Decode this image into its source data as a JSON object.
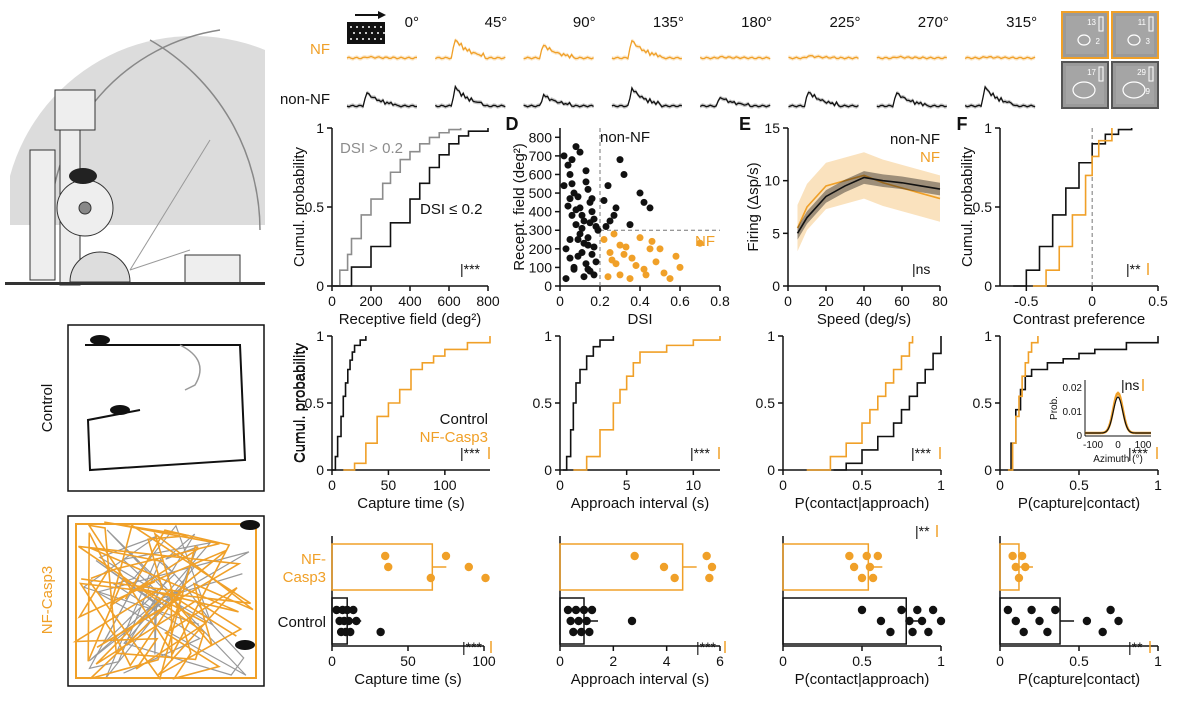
{
  "colors": {
    "nf": "#f0a028",
    "nonnf": "#111111",
    "gray": "#8c8c8c"
  },
  "top_row": {
    "angles": [
      "0°",
      "45°",
      "90°",
      "135°",
      "180°",
      "225°",
      "270°",
      "315°"
    ],
    "nf_label": "NF",
    "nonnf_label": "non-NF",
    "nf_peaks": [
      0.05,
      0.85,
      0.6,
      0.8,
      0.05,
      0.1,
      0.05,
      0.05
    ],
    "nonnf_peaks": [
      0.6,
      0.85,
      0.5,
      0.8,
      0.4,
      0.65,
      0.6,
      0.85
    ],
    "rf_numbers": [
      "13",
      "11",
      "17",
      "29"
    ],
    "rf_sub_numbers": [
      "2",
      "3",
      "",
      "9"
    ]
  },
  "left_panel": {
    "control_label": "Control",
    "nfcasp3_label": "NF-Casp3"
  },
  "chart_data": [
    {
      "id": "rf_cdf",
      "type": "line",
      "title": "",
      "xlabel": "Receptive field (deg²)",
      "ylabel": "Cumul. probability",
      "xlim": [
        0,
        800
      ],
      "ylim": [
        0,
        1
      ],
      "xticks": [
        "0",
        "200",
        "400",
        "600",
        "800"
      ],
      "yticks": [
        "0",
        "0.5",
        "1"
      ],
      "series": [
        {
          "name": "DSI > 0.2",
          "color": "gray",
          "x": [
            0,
            40,
            80,
            100,
            150,
            200,
            260,
            300,
            350,
            400,
            450,
            500,
            550,
            600,
            660
          ],
          "y": [
            0,
            0.1,
            0.2,
            0.3,
            0.45,
            0.55,
            0.65,
            0.72,
            0.8,
            0.85,
            0.9,
            0.94,
            0.97,
            0.99,
            1.0
          ]
        },
        {
          "name": "DSI ≤ 0.2",
          "color": "nonnf",
          "x": [
            0,
            100,
            200,
            300,
            400,
            450,
            500,
            550,
            600,
            650,
            700,
            800
          ],
          "y": [
            0,
            0.12,
            0.25,
            0.4,
            0.55,
            0.65,
            0.75,
            0.83,
            0.9,
            0.95,
            0.98,
            1.0
          ]
        }
      ],
      "annotation": "***"
    },
    {
      "id": "rf_dsi_scatter",
      "type": "scatter",
      "panel_letter": "D",
      "xlabel": "DSI",
      "ylabel": "Recept. field (deg²)",
      "xlim": [
        0,
        0.8
      ],
      "ylim": [
        0,
        850
      ],
      "xticks": [
        "0",
        "0.2",
        "0.4",
        "0.6",
        "0.8"
      ],
      "yticks": [
        "0",
        "100",
        "200",
        "300",
        "400",
        "500",
        "600",
        "700",
        "800"
      ],
      "thresholds": {
        "dsi": 0.2,
        "rf": 300
      },
      "labels": {
        "nonnf": "non-NF",
        "nf": "NF"
      },
      "nonnf_points": {
        "x": [
          0.02,
          0.04,
          0.05,
          0.06,
          0.07,
          0.08,
          0.09,
          0.1,
          0.11,
          0.12,
          0.13,
          0.14,
          0.15,
          0.16,
          0.17,
          0.18,
          0.19,
          0.03,
          0.05,
          0.07,
          0.09,
          0.11,
          0.13,
          0.15,
          0.17,
          0.04,
          0.06,
          0.08,
          0.1,
          0.12,
          0.14,
          0.16,
          0.18,
          0.02,
          0.05,
          0.08,
          0.11,
          0.14,
          0.17,
          0.06,
          0.1,
          0.13,
          0.16,
          0.03,
          0.07,
          0.12,
          0.15,
          0.05,
          0.09,
          0.14,
          0.3,
          0.32,
          0.4,
          0.42,
          0.25,
          0.28,
          0.22,
          0.24,
          0.35,
          0.45,
          0.27,
          0.23
        ],
        "y": [
          700,
          650,
          600,
          550,
          500,
          750,
          480,
          420,
          380,
          350,
          620,
          520,
          450,
          400,
          360,
          320,
          300,
          200,
          150,
          100,
          250,
          180,
          120,
          80,
          60,
          430,
          380,
          330,
          280,
          230,
          220,
          170,
          130,
          540,
          470,
          410,
          310,
          260,
          210,
          680,
          720,
          560,
          470,
          40,
          90,
          50,
          340,
          250,
          160,
          90,
          680,
          600,
          500,
          450,
          350,
          420,
          460,
          540,
          330,
          420,
          380,
          320
        ]
      },
      "nf_points": {
        "x": [
          0.22,
          0.25,
          0.28,
          0.3,
          0.33,
          0.36,
          0.4,
          0.42,
          0.45,
          0.48,
          0.52,
          0.55,
          0.6,
          0.7,
          0.24,
          0.27,
          0.32,
          0.38,
          0.46,
          0.58,
          0.35,
          0.5,
          0.3,
          0.43,
          0.26
        ],
        "y": [
          250,
          180,
          120,
          60,
          210,
          150,
          260,
          90,
          200,
          130,
          70,
          40,
          100,
          230,
          50,
          280,
          170,
          110,
          240,
          160,
          40,
          200,
          220,
          60,
          140
        ]
      }
    },
    {
      "id": "speed_tuning",
      "type": "line",
      "panel_letter": "E",
      "xlabel": "Speed (deg/s)",
      "ylabel": "Firing (Δsp/s)",
      "xlim": [
        0,
        80
      ],
      "ylim": [
        0,
        15
      ],
      "xticks": [
        "0",
        "20",
        "40",
        "60",
        "80"
      ],
      "yticks": [
        "0",
        "5",
        "10",
        "15"
      ],
      "legend": [
        "non-NF",
        "NF"
      ],
      "series": [
        {
          "name": "non-NF",
          "color": "nonnf",
          "x": [
            5,
            10,
            20,
            30,
            40,
            50,
            60,
            70,
            80
          ],
          "y": [
            5,
            6.5,
            8.5,
            9.5,
            10.3,
            10,
            9.8,
            9.5,
            9.2
          ]
        },
        {
          "name": "NF",
          "color": "nf",
          "x": [
            5,
            10,
            20,
            30,
            40,
            50,
            60,
            70,
            80
          ],
          "y": [
            5.5,
            7.5,
            9.5,
            10,
            10.5,
            9.8,
            9.3,
            8.8,
            8.3
          ]
        }
      ],
      "annotation": "ns"
    },
    {
      "id": "contrast_cdf",
      "type": "line",
      "panel_letter": "F",
      "xlabel": "Contrast preference",
      "ylabel": "Cumul. probability",
      "xlim": [
        -0.7,
        0.5
      ],
      "ylim": [
        0,
        1
      ],
      "xticks": [
        "-0.5",
        "0",
        "0.5"
      ],
      "yticks": [
        "0",
        "0.5",
        "1"
      ],
      "series": [
        {
          "name": "non-NF",
          "color": "nonnf",
          "x": [
            -0.6,
            -0.5,
            -0.4,
            -0.3,
            -0.2,
            -0.1,
            0,
            0.1,
            0.2,
            0.3
          ],
          "y": [
            0,
            0.1,
            0.25,
            0.45,
            0.62,
            0.78,
            0.9,
            0.96,
            0.99,
            1
          ]
        },
        {
          "name": "NF",
          "color": "nf",
          "x": [
            -0.45,
            -0.35,
            -0.25,
            -0.15,
            -0.05,
            0,
            0.05,
            0.15
          ],
          "y": [
            0,
            0.1,
            0.25,
            0.45,
            0.7,
            0.82,
            0.92,
            1
          ]
        }
      ],
      "annotation": "**"
    },
    {
      "id": "capture_time_cdf",
      "type": "line",
      "xlabel": "Capture time (s)",
      "ylabel": "Cumul. probability",
      "xlim": [
        0,
        140
      ],
      "ylim": [
        0,
        1
      ],
      "xticks": [
        "0",
        "50",
        "100"
      ],
      "yticks": [
        "0",
        "0.5",
        "1"
      ],
      "legend": [
        "Control",
        "NF-Casp3"
      ],
      "series": [
        {
          "name": "Control",
          "color": "nonnf",
          "x": [
            0,
            3,
            5,
            8,
            10,
            12,
            14,
            16,
            18,
            20,
            25,
            30
          ],
          "y": [
            0,
            0.1,
            0.25,
            0.4,
            0.55,
            0.65,
            0.75,
            0.82,
            0.88,
            0.93,
            0.97,
            1
          ]
        },
        {
          "name": "NF-Casp3",
          "color": "nf",
          "x": [
            10,
            20,
            30,
            40,
            50,
            60,
            70,
            80,
            90,
            100,
            120,
            140
          ],
          "y": [
            0,
            0.05,
            0.2,
            0.4,
            0.5,
            0.6,
            0.75,
            0.8,
            0.85,
            0.9,
            0.95,
            1
          ]
        }
      ],
      "annotation": "***"
    },
    {
      "id": "approach_cdf",
      "type": "line",
      "xlabel": "Approach interval (s)",
      "ylabel": "",
      "xlim": [
        0,
        12
      ],
      "ylim": [
        0,
        1
      ],
      "xticks": [
        "0",
        "5",
        "10"
      ],
      "yticks": [
        "0",
        "0.5",
        "1"
      ],
      "series": [
        {
          "name": "Control",
          "color": "nonnf",
          "x": [
            0.2,
            0.5,
            0.8,
            1,
            1.2,
            1.5,
            2,
            2.5,
            3,
            4
          ],
          "y": [
            0,
            0.1,
            0.3,
            0.5,
            0.65,
            0.75,
            0.85,
            0.92,
            0.97,
            1
          ]
        },
        {
          "name": "NF-Casp3",
          "color": "nf",
          "x": [
            1,
            2,
            3,
            4,
            4.5,
            5,
            5.5,
            6,
            8,
            10,
            12
          ],
          "y": [
            0,
            0.1,
            0.3,
            0.5,
            0.6,
            0.7,
            0.8,
            0.88,
            0.93,
            0.97,
            1
          ]
        }
      ],
      "annotation": "***"
    },
    {
      "id": "contact_approach_cdf",
      "type": "line",
      "xlabel": "P(contact|approach)",
      "ylabel": "",
      "xlim": [
        0,
        1
      ],
      "ylim": [
        0,
        1
      ],
      "xticks": [
        "0",
        "0.5",
        "1"
      ],
      "yticks": [
        "0",
        "0.5",
        "1"
      ],
      "series": [
        {
          "name": "Control",
          "color": "nonnf",
          "x": [
            0.32,
            0.4,
            0.5,
            0.6,
            0.7,
            0.75,
            0.8,
            0.85,
            0.9,
            0.95,
            1
          ],
          "y": [
            0,
            0.05,
            0.15,
            0.25,
            0.35,
            0.45,
            0.55,
            0.65,
            0.75,
            0.87,
            1
          ]
        },
        {
          "name": "NF-Casp3",
          "color": "nf",
          "x": [
            0.15,
            0.3,
            0.4,
            0.5,
            0.55,
            0.6,
            0.65,
            0.7,
            0.75,
            0.8,
            0.82
          ],
          "y": [
            0,
            0.1,
            0.2,
            0.35,
            0.45,
            0.55,
            0.65,
            0.75,
            0.85,
            0.95,
            1
          ]
        }
      ],
      "annotation": "***"
    },
    {
      "id": "capture_contact_cdf",
      "type": "line",
      "xlabel": "P(capture|contact)",
      "ylabel": "",
      "xlim": [
        0,
        1
      ],
      "ylim": [
        0,
        1
      ],
      "xticks": [
        "0",
        "0.5",
        "1"
      ],
      "yticks": [
        "0",
        "0.5",
        "1"
      ],
      "series": [
        {
          "name": "Control",
          "color": "nonnf",
          "x": [
            0.05,
            0.07,
            0.1,
            0.13,
            0.16,
            0.2,
            0.3,
            0.4,
            0.5,
            0.6,
            0.8,
            1
          ],
          "y": [
            0,
            0.2,
            0.45,
            0.6,
            0.7,
            0.75,
            0.8,
            0.83,
            0.87,
            0.9,
            0.95,
            1
          ]
        },
        {
          "name": "NF-Casp3",
          "color": "nf",
          "x": [
            0.05,
            0.08,
            0.1,
            0.12,
            0.14,
            0.16,
            0.18,
            0.2,
            0.24
          ],
          "y": [
            0,
            0.2,
            0.4,
            0.55,
            0.7,
            0.8,
            0.88,
            0.95,
            1
          ]
        }
      ],
      "annotation": "***",
      "inset": {
        "xlabel": "Azimuth (°)",
        "ylabel": "Prob.",
        "xticks": [
          "-100",
          "0",
          "100"
        ],
        "yticks": [
          "0",
          "0.01",
          "0.02"
        ],
        "annotation": "ns"
      }
    },
    {
      "id": "capture_time_bar",
      "type": "bar",
      "categories": [
        "NF-Casp3",
        "Control"
      ],
      "xlabel": "Capture time (s)",
      "xlim": [
        0,
        100
      ],
      "xticks": [
        "0",
        "50",
        "100"
      ],
      "values": [
        66,
        10
      ],
      "points": [
        [
          35,
          37,
          65,
          75,
          90,
          101
        ],
        [
          3,
          5,
          6,
          7,
          8,
          9,
          10,
          11,
          12,
          14,
          16,
          32
        ]
      ],
      "annotation": "***"
    },
    {
      "id": "approach_interval_bar",
      "type": "bar",
      "categories": [
        "NF-Casp3",
        "Control"
      ],
      "xlabel": "Approach interval (s)",
      "xlim": [
        0,
        6
      ],
      "xticks": [
        "0",
        "2",
        "4",
        "6"
      ],
      "values": [
        4.6,
        0.9
      ],
      "points": [
        [
          2.8,
          3.9,
          4.3,
          5.5,
          5.7,
          5.6
        ],
        [
          0.3,
          0.4,
          0.5,
          0.6,
          0.7,
          0.8,
          0.9,
          1.0,
          1.1,
          1.2,
          2.7
        ]
      ],
      "annotation": "***"
    },
    {
      "id": "contact_approach_bar",
      "type": "bar",
      "categories": [
        "NF-Casp3",
        "Control"
      ],
      "xlabel": "P(contact|approach)",
      "xlim": [
        0,
        1
      ],
      "xticks": [
        "0",
        "0.5",
        "1"
      ],
      "values": [
        0.54,
        0.78
      ],
      "points": [
        [
          0.42,
          0.45,
          0.5,
          0.53,
          0.55,
          0.57,
          0.6
        ],
        [
          0.5,
          0.62,
          0.68,
          0.75,
          0.8,
          0.82,
          0.85,
          0.88,
          0.92,
          0.95,
          1.0
        ]
      ],
      "annotation": "**"
    },
    {
      "id": "capture_contact_bar",
      "type": "bar",
      "categories": [
        "NF-Casp3",
        "Control"
      ],
      "xlabel": "P(capture|contact)",
      "xlim": [
        0,
        1
      ],
      "xticks": [
        "0",
        "0.5",
        "1"
      ],
      "values": [
        0.12,
        0.38
      ],
      "points": [
        [
          0.08,
          0.1,
          0.12,
          0.14,
          0.16
        ],
        [
          0.05,
          0.1,
          0.15,
          0.2,
          0.25,
          0.3,
          0.35,
          0.55,
          0.65,
          0.7,
          0.75
        ]
      ],
      "annotation": "**"
    }
  ]
}
